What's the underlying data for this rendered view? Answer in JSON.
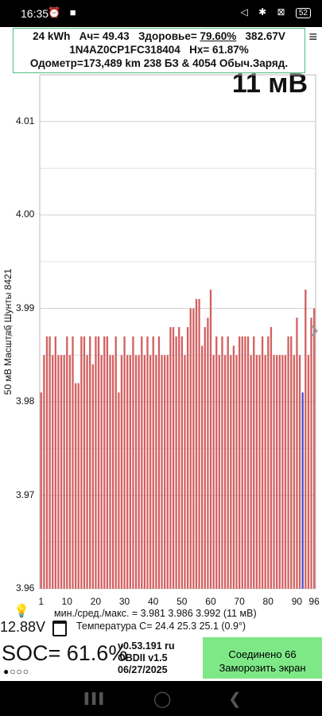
{
  "status_bar": {
    "time": "16:35",
    "left_icons": "⏰ ■",
    "right_icons": "◁ ✱ ⊠",
    "battery": "52"
  },
  "header": {
    "capacity": "24 kWh",
    "ah": "Ач= 49.43",
    "health_label": "Здоровье=",
    "health_value": "79.60%",
    "pack_voltage": "382.67V",
    "vin": "1N4AZ0CP1FC318404",
    "hx": "Hx= 61.87%",
    "odometer": "Одометр=173,489 km 238 БЗ & 4054 Обыч.Заряд.",
    "menu_icon": "≡"
  },
  "spread_label": "11 мВ",
  "chart_data": {
    "type": "bar",
    "y_axis_title": "50 мВ Масштаб  Шунты 8421",
    "ylim": [
      3.96,
      4.015
    ],
    "yticks": [
      "4.01",
      "4.00",
      "3.99",
      "3.98",
      "3.97",
      "3.96"
    ],
    "xticks": [
      "1",
      "10",
      "20",
      "30",
      "40",
      "50",
      "60",
      "70",
      "80",
      "90",
      "96"
    ],
    "bar_color": "#d36060",
    "highlight_color": "#4a4ad0",
    "highlight_index": 91,
    "values": [
      3.981,
      3.985,
      3.987,
      3.987,
      3.985,
      3.987,
      3.985,
      3.985,
      3.985,
      3.987,
      3.985,
      3.987,
      3.982,
      3.982,
      3.987,
      3.987,
      3.985,
      3.987,
      3.984,
      3.987,
      3.987,
      3.985,
      3.987,
      3.987,
      3.985,
      3.985,
      3.987,
      3.981,
      3.985,
      3.987,
      3.985,
      3.985,
      3.987,
      3.985,
      3.985,
      3.987,
      3.985,
      3.987,
      3.985,
      3.987,
      3.985,
      3.987,
      3.985,
      3.985,
      3.985,
      3.988,
      3.988,
      3.987,
      3.988,
      3.987,
      3.985,
      3.988,
      3.99,
      3.99,
      3.991,
      3.991,
      3.986,
      3.988,
      3.989,
      3.992,
      3.985,
      3.987,
      3.985,
      3.987,
      3.985,
      3.987,
      3.985,
      3.986,
      3.985,
      3.987,
      3.987,
      3.987,
      3.987,
      3.985,
      3.987,
      3.985,
      3.985,
      3.987,
      3.985,
      3.987,
      3.988,
      3.985,
      3.985,
      3.985,
      3.985,
      3.985,
      3.987,
      3.987,
      3.985,
      3.989,
      3.985,
      3.981,
      3.992,
      3.985,
      3.989,
      3.99
    ]
  },
  "nav_arrows": {
    "left": "‹",
    "right": "›"
  },
  "stats": {
    "minmax": "мин./сред./макс. = 3.981  3.986  3.992   (11 мВ)",
    "temperature": "Температура C= 24.4   25.3   25.1   (0.9°)"
  },
  "aux_voltage": "12.88V",
  "soc": "SOC= 61.6%",
  "dots": "●○○○",
  "version": {
    "line1": "v0.53.191 ru",
    "line2": "OBDII  v1.5",
    "line3": "06/27/2025"
  },
  "connect_button": {
    "line1": "Соединено 66",
    "line2": "Заморозить экран"
  },
  "navbar": {
    "left": "▐▐▐",
    "center": "◯",
    "right": "❮"
  }
}
